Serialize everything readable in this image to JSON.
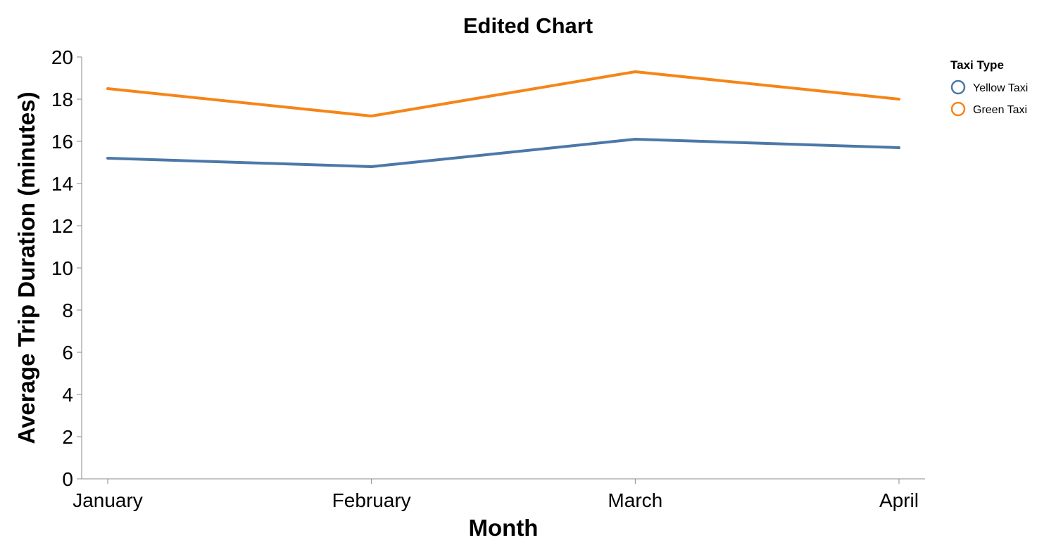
{
  "chart_data": {
    "type": "line",
    "title": "Edited Chart",
    "xlabel": "Month",
    "ylabel": "Average Trip Duration (minutes)",
    "categories": [
      "January",
      "February",
      "March",
      "April"
    ],
    "ylim": [
      0,
      20
    ],
    "yticks": [
      0,
      2,
      4,
      6,
      8,
      10,
      12,
      14,
      16,
      18,
      20
    ],
    "grid": false,
    "legend": {
      "title": "Taxi Type",
      "placement": "top-right"
    },
    "series": [
      {
        "name": "Yellow Taxi",
        "color": "#4c78a8",
        "values": [
          15.2,
          14.8,
          16.1,
          15.7
        ]
      },
      {
        "name": "Green Taxi",
        "color": "#f58518",
        "values": [
          18.5,
          17.2,
          19.3,
          18.0
        ]
      }
    ]
  }
}
